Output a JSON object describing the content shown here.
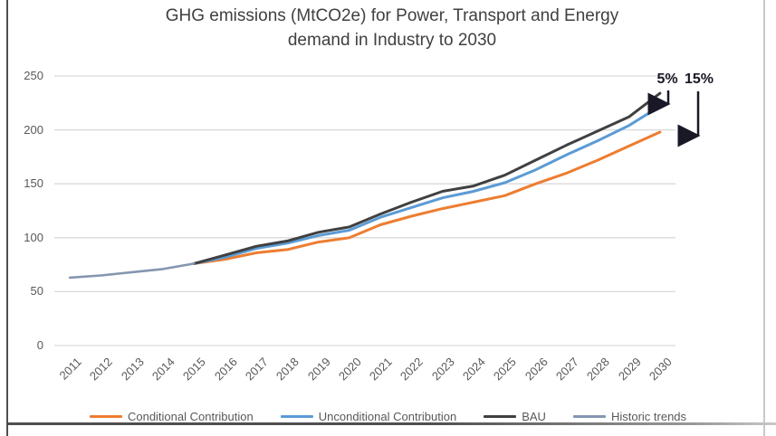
{
  "title": {
    "line1": "GHG emissions (MtCO2e) for Power, Transport and Energy",
    "line2": "demand in Industry to 2030"
  },
  "chart_data": {
    "type": "line",
    "title": "GHG emissions (MtCO2e) for Power, Transport and Energy demand in Industry to 2030",
    "xlabel": "",
    "ylabel": "",
    "ylim": [
      0,
      250
    ],
    "yticks": [
      0,
      50,
      100,
      150,
      200,
      250
    ],
    "grid": true,
    "legend_position": "bottom",
    "categories": [
      "2011",
      "2012",
      "2013",
      "2014",
      "2015",
      "2016",
      "2017",
      "2018",
      "2019",
      "2020",
      "2021",
      "2022",
      "2023",
      "2024",
      "2025",
      "2026",
      "2027",
      "2028",
      "2029",
      "2030"
    ],
    "series": [
      {
        "name": "Conditional Contribution",
        "color": "#ED7D31",
        "values": [
          null,
          null,
          null,
          null,
          76,
          80,
          86,
          89,
          96,
          100,
          112,
          120,
          127,
          133,
          139,
          150,
          160,
          172,
          185,
          198
        ]
      },
      {
        "name": "Unconditional Contribution",
        "color": "#5B9BD5",
        "values": [
          null,
          null,
          null,
          null,
          76,
          82,
          90,
          95,
          102,
          107,
          119,
          128,
          137,
          143,
          151,
          163,
          177,
          190,
          204,
          222
        ]
      },
      {
        "name": "BAU",
        "color": "#404040",
        "values": [
          null,
          null,
          null,
          null,
          76,
          84,
          92,
          97,
          105,
          110,
          122,
          133,
          143,
          148,
          158,
          172,
          186,
          199,
          212,
          234
        ]
      },
      {
        "name": "Historic trends",
        "color": "#8496B0",
        "values": [
          63,
          65,
          68,
          71,
          76,
          null,
          null,
          null,
          null,
          null,
          null,
          null,
          null,
          null,
          null,
          null,
          null,
          null,
          null,
          null
        ]
      }
    ],
    "annotations": [
      {
        "label": "5%"
      },
      {
        "label": "15%"
      }
    ],
    "grid_color": "#D9D9D9",
    "axis_text_color": "#595959",
    "annotation_color": "#181826"
  }
}
